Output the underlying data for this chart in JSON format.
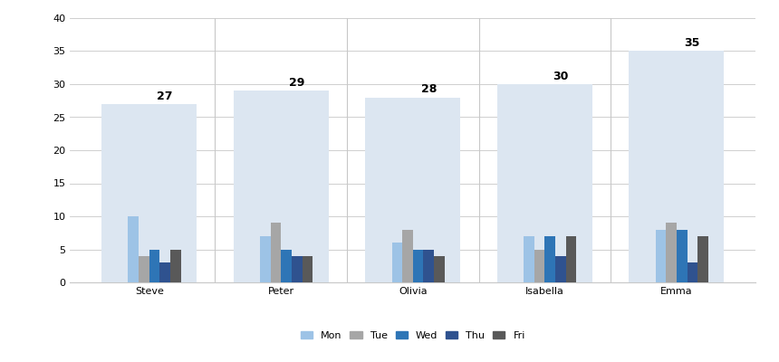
{
  "persons": [
    "Steve",
    "Peter",
    "Olivia",
    "Isabella",
    "Emma"
  ],
  "totals": [
    27,
    29,
    28,
    30,
    35
  ],
  "days": [
    "Mon",
    "Tue",
    "Wed",
    "Thu",
    "Fri"
  ],
  "values": {
    "Steve": [
      10,
      4,
      5,
      3,
      5
    ],
    "Peter": [
      7,
      9,
      5,
      4,
      4
    ],
    "Olivia": [
      6,
      8,
      5,
      5,
      4
    ],
    "Isabella": [
      7,
      5,
      7,
      4,
      7
    ],
    "Emma": [
      8,
      9,
      8,
      3,
      7
    ]
  },
  "day_colors": [
    "#9dc3e6",
    "#a6a6a6",
    "#2e75b6",
    "#2f528f",
    "#595959"
  ],
  "total_bar_color": "#dce6f1",
  "total_bar_width": 0.72,
  "group_bar_width": 0.08,
  "ylim": [
    0,
    40
  ],
  "yticks": [
    0,
    5,
    10,
    15,
    20,
    25,
    30,
    35,
    40
  ],
  "bg_color": "#ffffff",
  "grid_color": "#c8c8c8",
  "label_fontsize": 9,
  "tick_fontsize": 8,
  "legend_fontsize": 8
}
